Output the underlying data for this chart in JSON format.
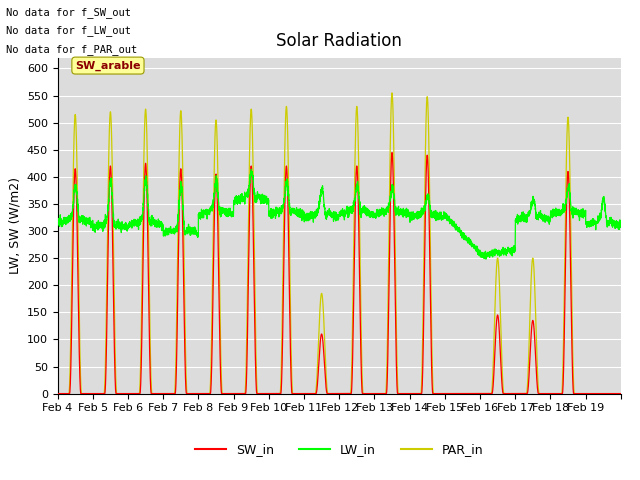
{
  "title": "Solar Radiation",
  "ylabel": "LW, SW (W/m2)",
  "ylim": [
    0,
    620
  ],
  "yticks": [
    0,
    50,
    100,
    150,
    200,
    250,
    300,
    350,
    400,
    450,
    500,
    550,
    600
  ],
  "xtick_labels": [
    "Feb 4",
    "Feb 5",
    "Feb 6",
    "Feb 7",
    "Feb 8",
    "Feb 9",
    "Feb 10",
    "Feb 11",
    "Feb 12",
    "Feb 13",
    "Feb 14",
    "Feb 15",
    "Feb 16",
    "Feb 17",
    "Feb 18",
    "Feb 19"
  ],
  "annotations": [
    "No data for f_SW_out",
    "No data for f_LW_out",
    "No data for f_PAR_out"
  ],
  "box_label": "SW_arable",
  "sw_color": "#ff0000",
  "lw_color": "#00ff00",
  "par_color": "#cccc00",
  "background_color": "#dcdcdc",
  "title_fontsize": 12,
  "axis_fontsize": 8,
  "n_days": 16,
  "points_per_day": 288,
  "par_peaks": [
    515,
    520,
    525,
    522,
    505,
    525,
    530,
    185,
    530,
    555,
    548,
    0,
    250,
    250,
    510,
    0
  ],
  "sw_peaks": [
    415,
    420,
    425,
    415,
    405,
    420,
    420,
    110,
    420,
    445,
    440,
    0,
    145,
    135,
    410,
    0
  ],
  "lw_base_values": [
    315,
    305,
    310,
    295,
    330,
    355,
    330,
    325,
    330,
    330,
    325,
    330,
    330,
    320,
    330,
    310
  ],
  "lw_peak_bumps": [
    60,
    80,
    75,
    80,
    50,
    45,
    50,
    45,
    45,
    40,
    30,
    25,
    0,
    30,
    40,
    40
  ]
}
